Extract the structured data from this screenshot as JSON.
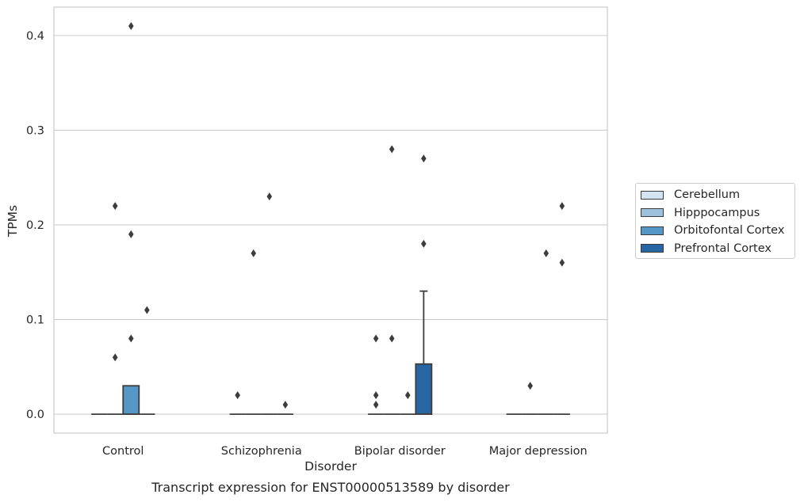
{
  "chart_data": {
    "type": "box",
    "xlabel": "Disorder",
    "ylabel": "TPMs",
    "caption": "Transcript expression for ENST00000513589 by disorder",
    "ylim": [
      -0.02,
      0.43
    ],
    "yticks": [
      0.0,
      0.1,
      0.2,
      0.3,
      0.4
    ],
    "ytick_labels": [
      "0.0",
      "0.1",
      "0.2",
      "0.3",
      "0.4"
    ],
    "grid": true,
    "legend_position": "outside-right",
    "categories": [
      "Control",
      "Schizophrenia",
      "Bipolar disorder",
      "Major depression"
    ],
    "series": [
      {
        "name": "Cerebellum",
        "color": "#d4e3f1",
        "boxes": [
          {
            "q1": 0,
            "median": 0,
            "q3": 0,
            "whisker_low": 0,
            "whisker_high": 0,
            "outliers": []
          },
          {
            "q1": 0,
            "median": 0,
            "q3": 0,
            "whisker_low": 0,
            "whisker_high": 0,
            "outliers": [
              0.02
            ]
          },
          {
            "q1": 0,
            "median": 0,
            "q3": 0,
            "whisker_low": 0,
            "whisker_high": 0,
            "outliers": [
              0.08,
              0.02,
              0.01
            ]
          },
          {
            "q1": 0,
            "median": 0,
            "q3": 0,
            "whisker_low": 0,
            "whisker_high": 0,
            "outliers": []
          }
        ]
      },
      {
        "name": "Hipppocampus",
        "color": "#9ec2de",
        "boxes": [
          {
            "q1": 0,
            "median": 0,
            "q3": 0,
            "whisker_low": 0,
            "whisker_high": 0,
            "outliers": [
              0.22,
              0.06
            ]
          },
          {
            "q1": 0,
            "median": 0,
            "q3": 0,
            "whisker_low": 0,
            "whisker_high": 0,
            "outliers": [
              0.17
            ]
          },
          {
            "q1": 0,
            "median": 0,
            "q3": 0,
            "whisker_low": 0,
            "whisker_high": 0,
            "outliers": [
              0.28,
              0.08
            ]
          },
          {
            "q1": 0,
            "median": 0,
            "q3": 0,
            "whisker_low": 0,
            "whisker_high": 0,
            "outliers": [
              0.03
            ]
          }
        ]
      },
      {
        "name": "Orbitofontal Cortex",
        "color": "#5597c7",
        "boxes": [
          {
            "q1": 0,
            "median": 0,
            "q3": 0.03,
            "whisker_low": 0,
            "whisker_high": 0.03,
            "outliers": [
              0.41,
              0.19,
              0.08
            ]
          },
          {
            "q1": 0,
            "median": 0,
            "q3": 0,
            "whisker_low": 0,
            "whisker_high": 0,
            "outliers": [
              0.23
            ]
          },
          {
            "q1": 0,
            "median": 0,
            "q3": 0,
            "whisker_low": 0,
            "whisker_high": 0,
            "outliers": [
              0.02
            ]
          },
          {
            "q1": 0,
            "median": 0,
            "q3": 0,
            "whisker_low": 0,
            "whisker_high": 0,
            "outliers": [
              0.17
            ]
          }
        ]
      },
      {
        "name": "Prefrontal Cortex",
        "color": "#2866a3",
        "boxes": [
          {
            "q1": 0,
            "median": 0,
            "q3": 0,
            "whisker_low": 0,
            "whisker_high": 0,
            "outliers": [
              0.11
            ]
          },
          {
            "q1": 0,
            "median": 0,
            "q3": 0,
            "whisker_low": 0,
            "whisker_high": 0,
            "outliers": [
              0.01
            ]
          },
          {
            "q1": 0,
            "median": 0,
            "q3": 0.053,
            "whisker_low": 0,
            "whisker_high": 0.13,
            "outliers": [
              0.27,
              0.18
            ]
          },
          {
            "q1": 0,
            "median": 0,
            "q3": 0,
            "whisker_low": 0,
            "whisker_high": 0,
            "outliers": [
              0.22,
              0.16
            ]
          }
        ]
      }
    ]
  }
}
